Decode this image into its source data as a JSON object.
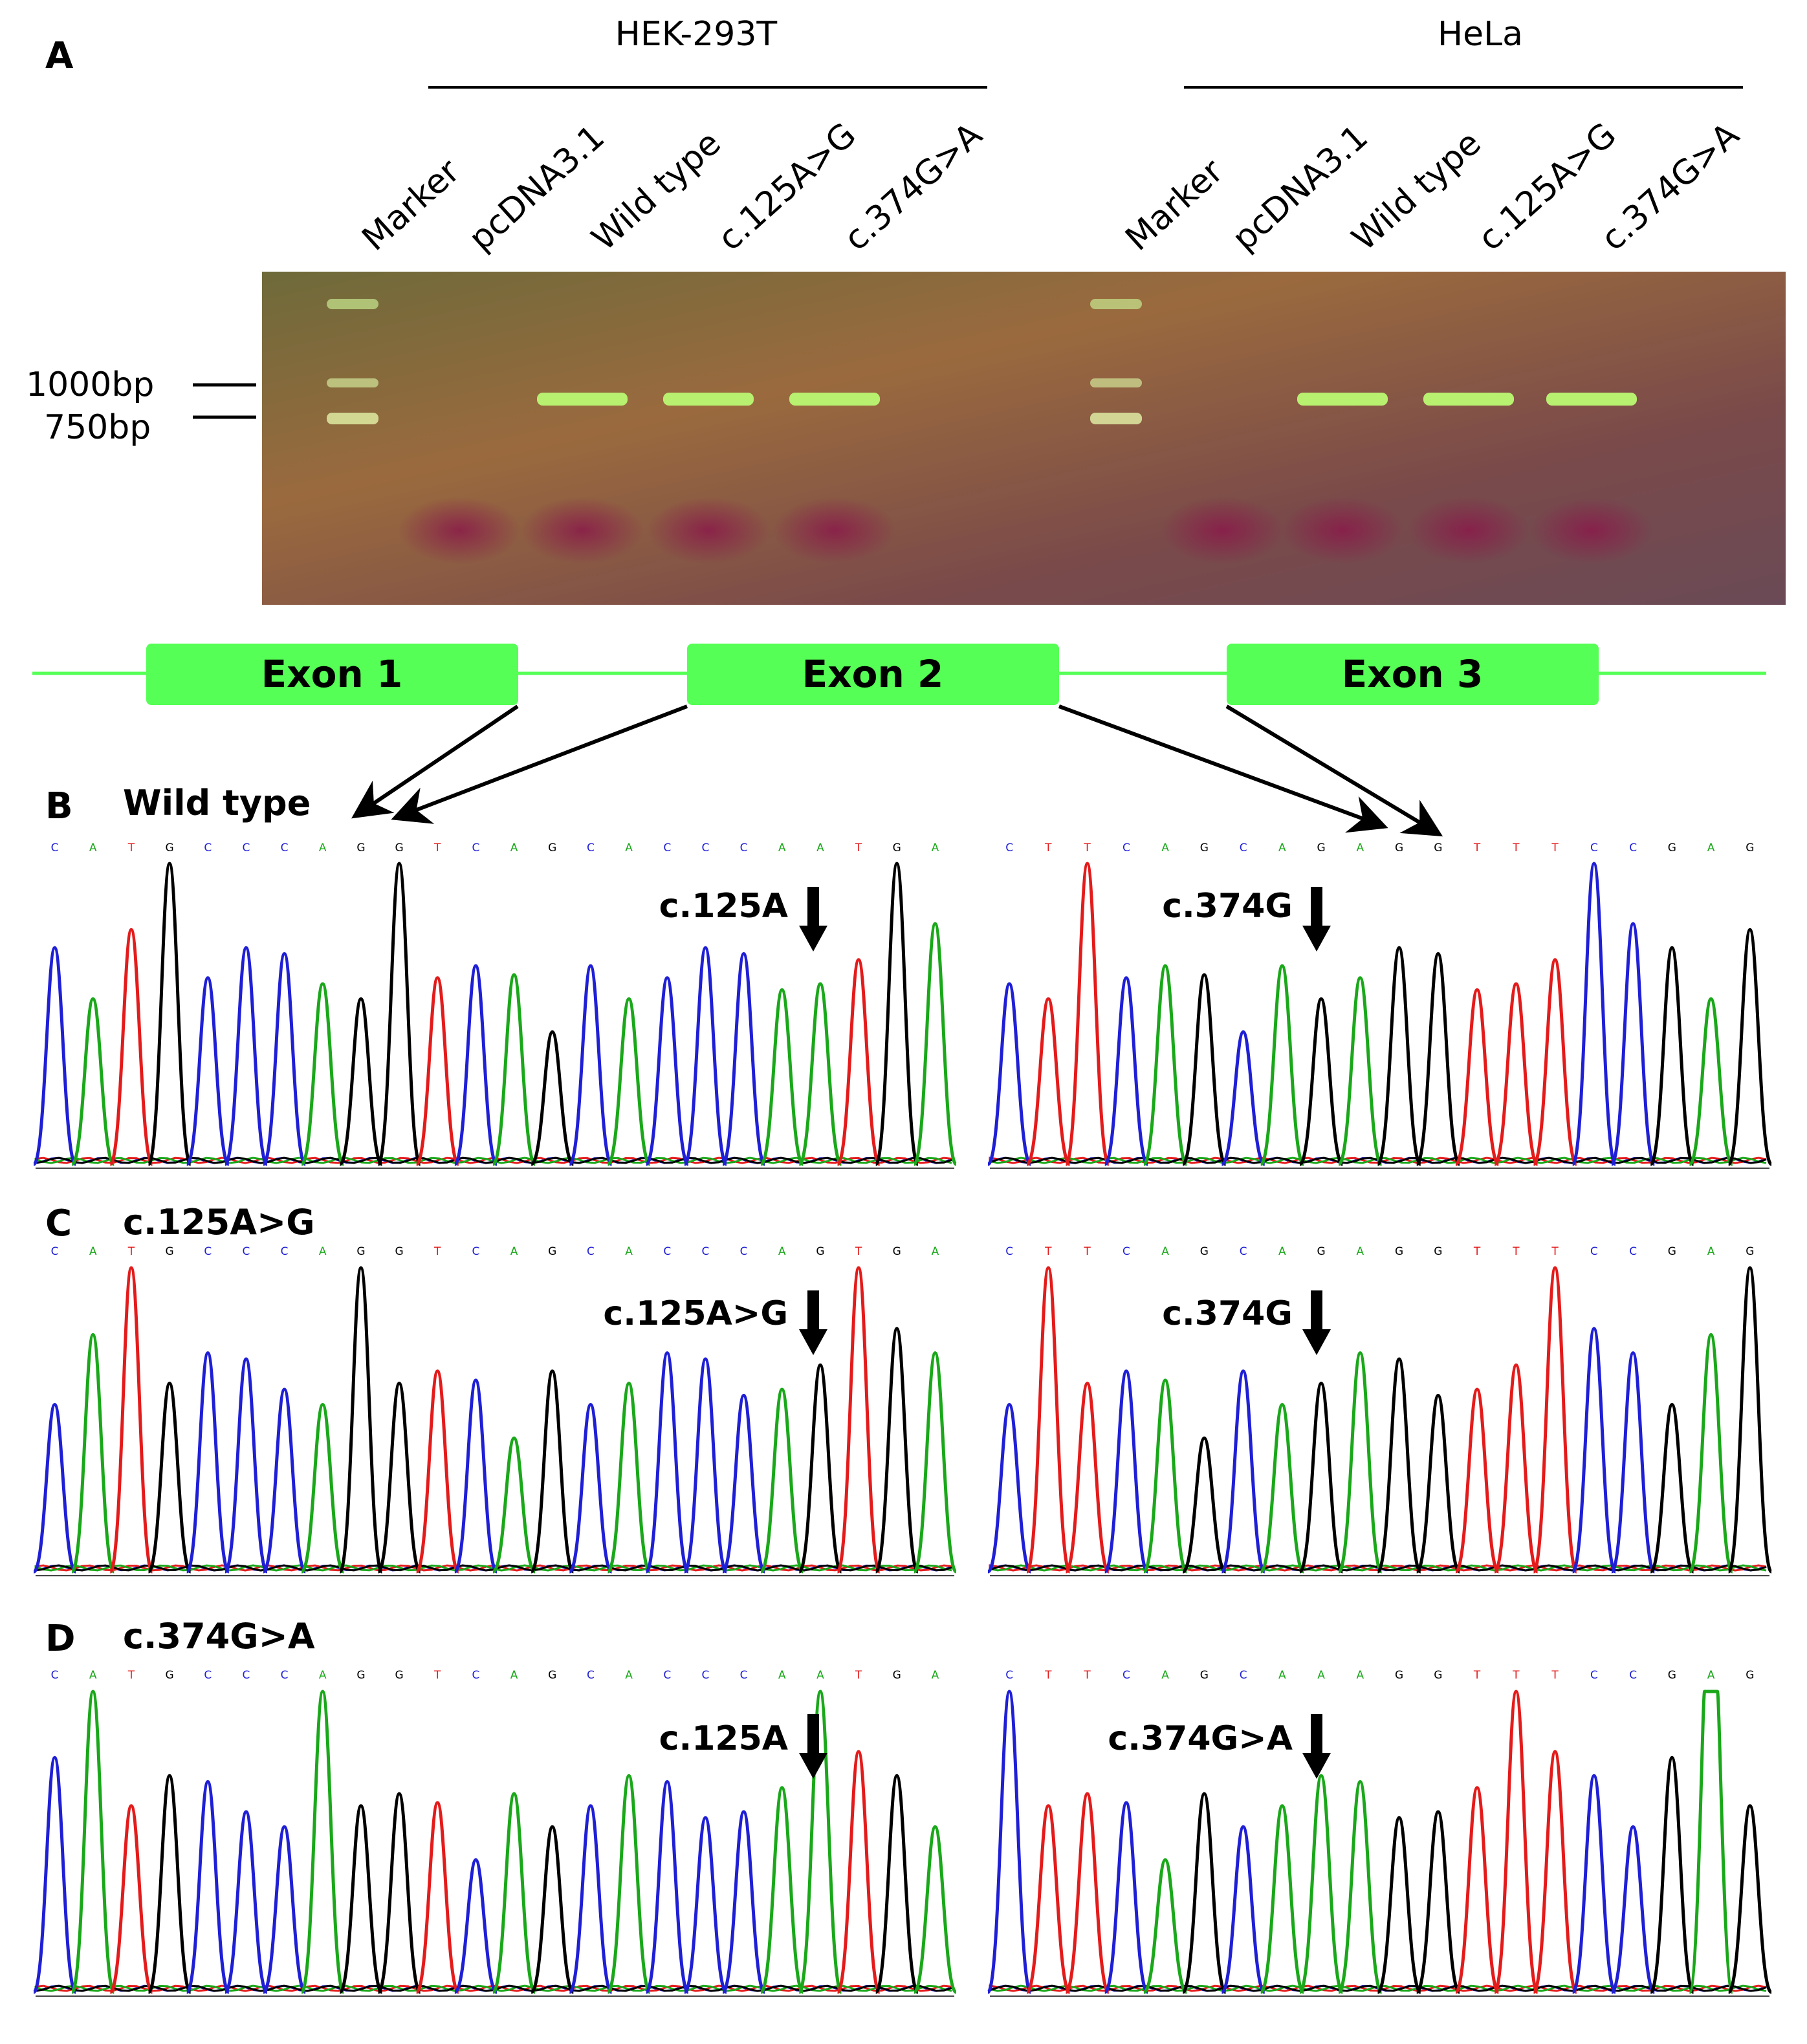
{
  "colors": {
    "A": "#1f1fd6",
    "C": "#1f1fd6",
    "T": "#e41b1b",
    "G": "#000000",
    "A_base": "#1aa81a",
    "exon": "#55ff55",
    "gel": "#7a5a3a"
  },
  "panelA": {
    "letter": "A",
    "groups": [
      "HEK-293T",
      "HeLa"
    ],
    "lanes": [
      "Marker",
      "pcDNA3.1",
      "Wild type",
      "c.125A>G",
      "c.374G>A"
    ],
    "size_labels": [
      "1000bp",
      "750bp"
    ],
    "band_present": [
      [
        true,
        false,
        true,
        true,
        true
      ],
      [
        true,
        false,
        true,
        true,
        true
      ]
    ]
  },
  "exons": [
    "Exon 1",
    "Exon 2",
    "Exon 3"
  ],
  "panels": [
    {
      "letter": "B",
      "title": "Wild type",
      "left_seq": "CATGCCCAGGTCAGCACCCAATGA",
      "right_seq": "CTTCAGCAGAGGTTTCCGAG",
      "left_mark": "c.125A",
      "right_mark": "c.374G"
    },
    {
      "letter": "C",
      "title": "c.125A>G",
      "left_seq": "CATGCCCAGGTCAGCACCCAGTGA",
      "right_seq": "CTTCAGCAGAGGTTTCCGAG",
      "left_mark": "c.125A>G",
      "right_mark": "c.374G"
    },
    {
      "letter": "D",
      "title": "c.374G>A",
      "left_seq": "CATGCCCAGGTCAGCACCCAATGA",
      "right_seq": "CTTCAGCAAAGGTTTCCGAG",
      "left_mark": "c.125A",
      "right_mark": "c.374G>A"
    }
  ]
}
